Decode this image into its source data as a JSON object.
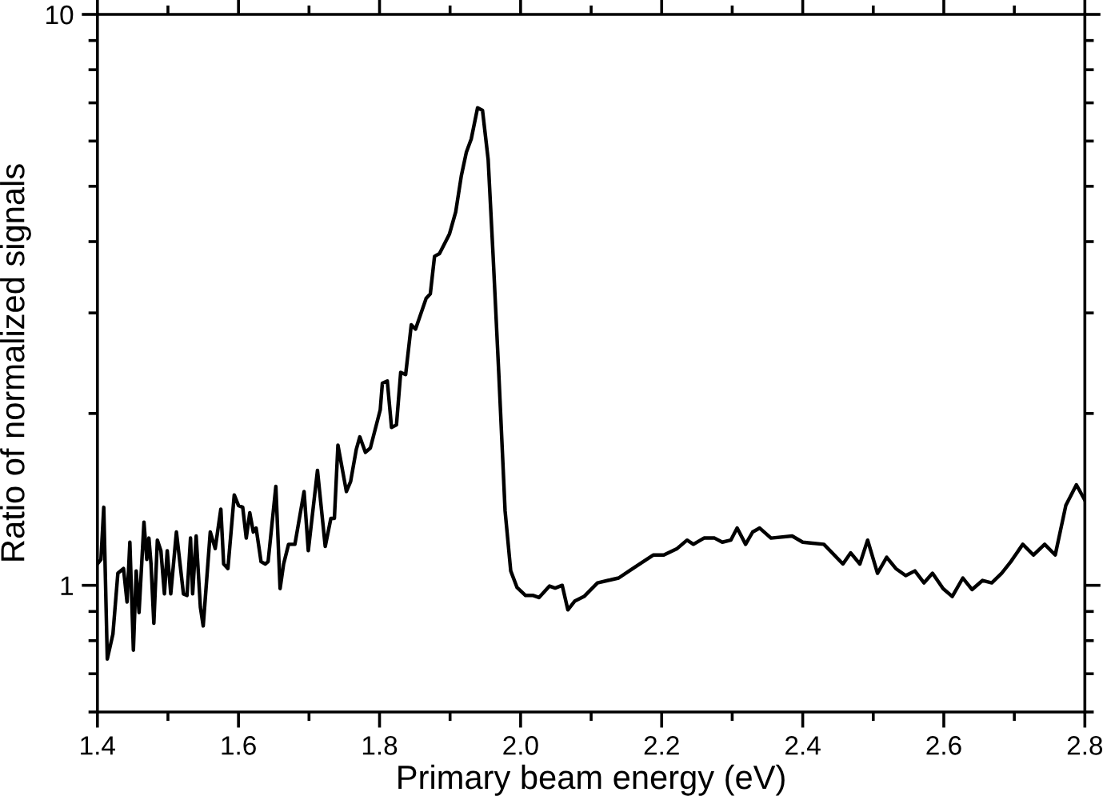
{
  "chart_data": {
    "type": "line",
    "xlabel": "Primary beam energy (eV)",
    "ylabel": "Ratio of normalized signals",
    "log": "y",
    "xlim": [
      1.4,
      2.8
    ],
    "xticks": [
      1.4,
      1.6,
      1.8,
      {
        "value": 2,
        "label": "2.0"
      },
      2.2,
      2.4,
      2.6,
      2.8
    ],
    "ylim": [
      0.6,
      10
    ],
    "yticks": [
      1,
      10
    ],
    "marker": "none",
    "line_style": "solid",
    "series": [
      {
        "color": "#000000",
        "x": [
          1.4,
          1.405,
          1.409,
          1.414,
          1.422,
          1.429,
          1.437,
          1.442,
          1.446,
          1.451,
          1.455,
          1.459,
          1.466,
          1.47,
          1.473,
          1.476,
          1.48,
          1.485,
          1.49,
          1.495,
          1.499,
          1.504,
          1.512,
          1.522,
          1.527,
          1.532,
          1.535,
          1.54,
          1.546,
          1.55,
          1.56,
          1.567,
          1.575,
          1.579,
          1.585,
          1.594,
          1.6,
          1.606,
          1.611,
          1.616,
          1.621,
          1.625,
          1.632,
          1.638,
          1.642,
          1.653,
          1.659,
          1.664,
          1.671,
          1.68,
          1.693,
          1.699,
          1.712,
          1.723,
          1.731,
          1.736,
          1.741,
          1.753,
          1.759,
          1.767,
          1.772,
          1.78,
          1.787,
          1.801,
          1.804,
          1.811,
          1.817,
          1.824,
          1.83,
          1.837,
          1.845,
          1.851,
          1.866,
          1.872,
          1.878,
          1.885,
          1.899,
          1.908,
          1.916,
          1.923,
          1.93,
          1.939,
          1.946,
          1.954,
          1.961,
          1.969,
          1.978,
          1.986,
          1.995,
          2.007,
          2.018,
          2.026,
          2.041,
          2.049,
          2.059,
          2.067,
          2.077,
          2.09,
          2.109,
          2.124,
          2.139,
          2.154,
          2.169,
          2.188,
          2.203,
          2.222,
          2.236,
          2.245,
          2.26,
          2.275,
          2.286,
          2.298,
          2.307,
          2.319,
          2.329,
          2.339,
          2.355,
          2.385,
          2.4,
          2.43,
          2.457,
          2.468,
          2.481,
          2.492,
          2.506,
          2.519,
          2.532,
          2.546,
          2.559,
          2.572,
          2.584,
          2.599,
          2.612,
          2.627,
          2.64,
          2.655,
          2.668,
          2.682,
          2.695,
          2.712,
          2.727,
          2.743,
          2.758,
          2.773,
          2.788,
          2.8
        ],
        "values": [
          1.09,
          1.11,
          1.37,
          0.743,
          0.822,
          1.05,
          1.07,
          0.935,
          1.19,
          0.77,
          1.06,
          0.896,
          1.29,
          1.11,
          1.21,
          1.09,
          0.858,
          1.2,
          1.15,
          0.966,
          1.15,
          0.966,
          1.24,
          0.966,
          0.96,
          1.21,
          0.966,
          1.22,
          0.915,
          0.849,
          1.24,
          1.16,
          1.36,
          1.09,
          1.07,
          1.44,
          1.38,
          1.37,
          1.21,
          1.34,
          1.24,
          1.26,
          1.1,
          1.09,
          1.1,
          1.49,
          0.987,
          1.09,
          1.18,
          1.18,
          1.46,
          1.15,
          1.59,
          1.17,
          1.31,
          1.31,
          1.76,
          1.46,
          1.52,
          1.73,
          1.82,
          1.71,
          1.74,
          2.03,
          2.26,
          2.28,
          1.89,
          1.91,
          2.36,
          2.34,
          2.86,
          2.81,
          3.18,
          3.24,
          3.77,
          3.81,
          4.12,
          4.51,
          5.22,
          5.73,
          6.05,
          6.86,
          6.79,
          5.57,
          3.78,
          2.36,
          1.35,
          1.06,
          0.991,
          0.96,
          0.96,
          0.952,
          0.997,
          0.989,
          1.0,
          0.906,
          0.939,
          0.956,
          1.01,
          1.02,
          1.03,
          1.06,
          1.09,
          1.13,
          1.13,
          1.16,
          1.2,
          1.18,
          1.21,
          1.21,
          1.19,
          1.2,
          1.26,
          1.18,
          1.24,
          1.26,
          1.21,
          1.22,
          1.19,
          1.18,
          1.09,
          1.14,
          1.09,
          1.2,
          1.05,
          1.12,
          1.07,
          1.04,
          1.06,
          1.01,
          1.05,
          0.987,
          0.956,
          1.03,
          0.983,
          1.02,
          1.01,
          1.05,
          1.1,
          1.18,
          1.13,
          1.18,
          1.13,
          1.38,
          1.5,
          1.41
        ]
      }
    ]
  }
}
